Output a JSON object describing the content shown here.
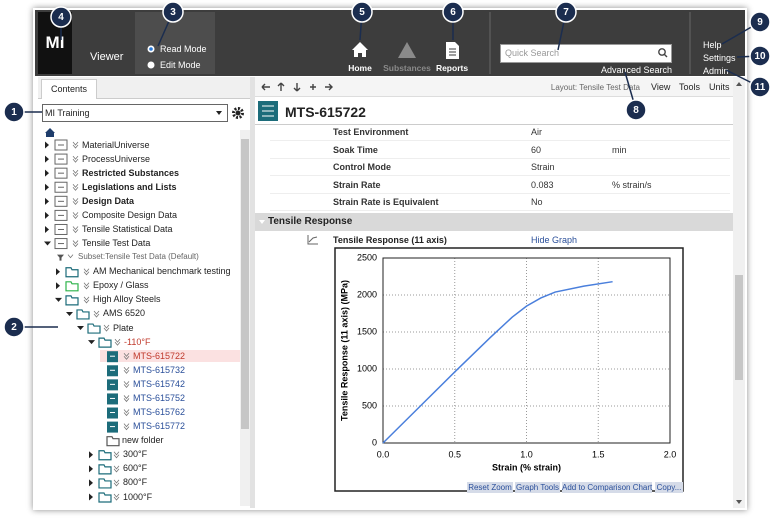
{
  "callouts": [
    "1",
    "2",
    "3",
    "4",
    "5",
    "6",
    "7",
    "8",
    "9",
    "10",
    "11"
  ],
  "topbar": {
    "logo": "MI",
    "app": "Viewer",
    "modes": [
      "Read Mode",
      "Edit Mode"
    ],
    "nav": [
      "Home",
      "Substances",
      "Reports"
    ],
    "search_placeholder": "Quick Search",
    "advanced_search": "Advanced Search",
    "links": [
      "Help",
      "Settings",
      "Admin"
    ]
  },
  "sidebar": {
    "tab": "Contents",
    "database": "MI Training",
    "tree": [
      "MaterialUniverse",
      "ProcessUniverse",
      "Restricted Substances",
      "Legislations and Lists",
      "Design Data",
      "Composite Design Data",
      "Tensile Statistical Data",
      "Tensile Test Data",
      "Subset:Tensile Test Data (Default)",
      "AM Mechanical benchmark testing",
      "Epoxy / Glass",
      "High Alloy Steels",
      "AMS 6520",
      "Plate",
      "-110°F",
      "MTS-615722",
      "MTS-615732",
      "MTS-615742",
      "MTS-615752",
      "MTS-615762",
      "MTS-615772",
      "new folder",
      "300°F",
      "600°F",
      "800°F",
      "1000°F"
    ]
  },
  "record": {
    "layout": "Layout: Tensile Test Data",
    "menu": [
      "View",
      "Tools",
      "Units"
    ],
    "title": "MTS-615722",
    "attributes": [
      {
        "name": "Test Environment",
        "value": "Air"
      },
      {
        "name": "Soak Time",
        "value": "60",
        "unit": "min"
      },
      {
        "name": "Control Mode",
        "value": "Strain"
      },
      {
        "name": "Strain Rate",
        "value": "0.083",
        "unit": "% strain/s"
      },
      {
        "name": "Strain Rate is Equivalent",
        "value": "No"
      }
    ],
    "section": "Tensile Response",
    "graph_attribute": "Tensile Response (11 axis)",
    "hide_graph": "Hide Graph",
    "graph_buttons": [
      "Reset Zoom",
      "Graph Tools",
      "Add to Comparison Chart",
      "Copy..."
    ]
  },
  "chart_data": {
    "type": "line",
    "x_label": "Strain (% strain)",
    "y_label": "Tensile Response (11 axis) (MPa)",
    "x": [
      0,
      0.25,
      0.5,
      0.75,
      0.9,
      1.0,
      1.1,
      1.2,
      1.4,
      1.6
    ],
    "values": [
      0,
      480,
      960,
      1430,
      1700,
      1850,
      1960,
      2040,
      2120,
      2180
    ],
    "color": "#4a7fdc",
    "xlim": [
      0,
      2.0
    ],
    "ylim": [
      0,
      2500
    ],
    "xticks": [
      {
        "value": 0,
        "label": "0.0"
      },
      0.5,
      {
        "value": 1,
        "label": "1.0"
      },
      1.5,
      {
        "value": 2,
        "label": "2.0"
      }
    ],
    "yticks": [
      0,
      500,
      1000,
      1500,
      2000,
      2500
    ],
    "grid": true
  }
}
